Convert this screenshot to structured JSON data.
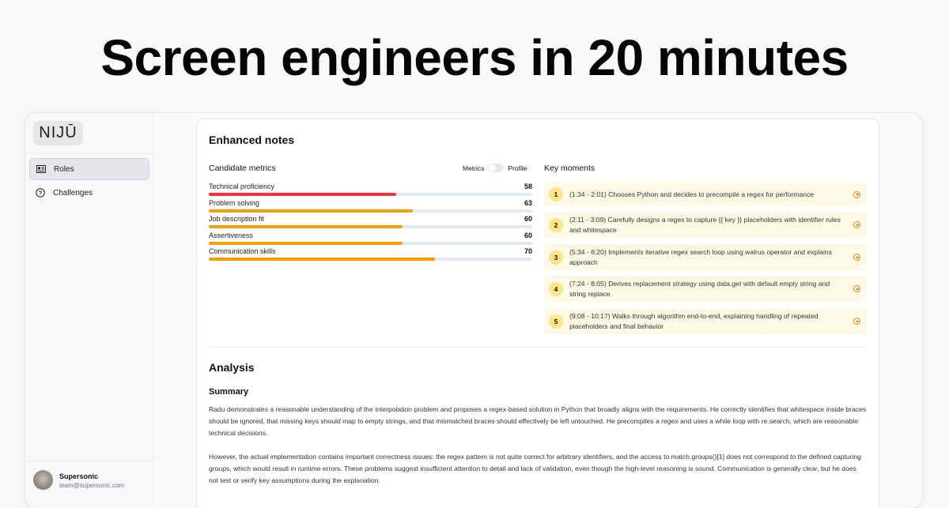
{
  "headline": "Screen engineers in 20 minutes",
  "sidebar": {
    "logo": "NIJŪ",
    "items": [
      {
        "label": "Roles",
        "icon": "id-card-icon",
        "active": true
      },
      {
        "label": "Challenges",
        "icon": "question-circle-icon",
        "active": false
      }
    ],
    "user": {
      "name": "Supersonic",
      "email": "team@supersonic.com"
    }
  },
  "notes": {
    "title": "Enhanced notes",
    "metrics_title": "Candidate metrics",
    "toggle_left": "Metrics",
    "toggle_right": "Profile",
    "metrics": [
      {
        "label": "Technical proficiency",
        "value": 58,
        "color": "#ef3340"
      },
      {
        "label": "Problem solving",
        "value": 63,
        "color": "#f59e0b"
      },
      {
        "label": "Job description fit",
        "value": 60,
        "color": "#f59e0b"
      },
      {
        "label": "Assertiveness",
        "value": 60,
        "color": "#f59e0b"
      },
      {
        "label": "Communication skills",
        "value": 70,
        "color": "#f59e0b"
      }
    ],
    "key_moments_title": "Key moments",
    "key_moments": [
      {
        "n": "1",
        "text": "(1:34 - 2:01) Chooses Python and decides to precompile a regex for performance"
      },
      {
        "n": "2",
        "text": "(2:11 - 3:09) Carefully designs a regex to capture {{ key }} placeholders with identifier rules and whitespace"
      },
      {
        "n": "3",
        "text": "(5:34 - 6:20) Implements iterative regex search loop using walrus operator and explains approach"
      },
      {
        "n": "4",
        "text": "(7:24 - 8:05) Derives replacement strategy using data.get with default empty string and string replace"
      },
      {
        "n": "5",
        "text": "(9:08 - 10:17) Walks through algorithm end-to-end, explaining handling of repeated placeholders and final behavior"
      }
    ]
  },
  "analysis": {
    "title": "Analysis",
    "summary_title": "Summary",
    "paragraphs": [
      "Radu demonstrates a reasonable understanding of the interpolation problem and proposes a regex-based solution in Python that broadly aligns with the requirements. He correctly identifies that whitespace inside braces should be ignored, that missing keys should map to empty strings, and that mismatched braces should effectively be left untouched. He precompiles a regex and uses a while loop with re.search, which are reasonable technical decisions.",
      "However, the actual implementation contains important correctness issues: the regex pattern is not quite correct for arbitrary identifiers, and the access to match.groups()[1] does not correspond to the defined capturing groups, which would result in runtime errors. These problems suggest insufficient attention to detail and lack of validation, even though the high-level reasoning is sound. Communication is generally clear, but he does not test or verify key assumptions during the explanation."
    ]
  }
}
